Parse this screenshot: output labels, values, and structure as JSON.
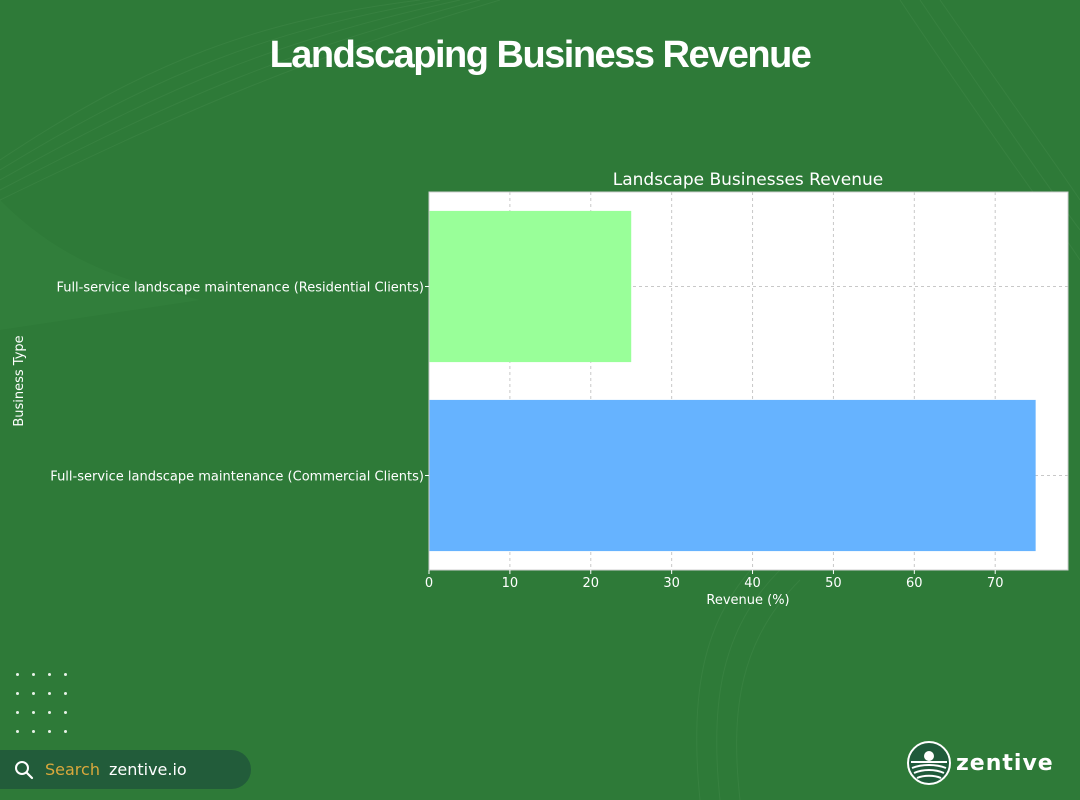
{
  "header": {
    "title": "Landscaping Business Revenue"
  },
  "chart_data": {
    "type": "bar",
    "orientation": "horizontal",
    "title": "Landscape Businesses Revenue",
    "xlabel": "Revenue (%)",
    "ylabel": "Business Type",
    "categories": [
      "Full-service landscape maintenance (Residential Clients)",
      "Full-service landscape maintenance (Commercial Clients)"
    ],
    "values": [
      25,
      75
    ],
    "colors": [
      "#99ff99",
      "#66b3ff"
    ],
    "xlim": [
      0,
      79
    ],
    "xticks": [
      0,
      10,
      20,
      30,
      40,
      50,
      60,
      70
    ],
    "grid": true
  },
  "footer": {
    "search_word": "Search",
    "search_domain": "zentive.io",
    "brand_name": "zentive",
    "search_icon": "magnifier-icon",
    "brand_icon": "zentive-logo-icon"
  }
}
